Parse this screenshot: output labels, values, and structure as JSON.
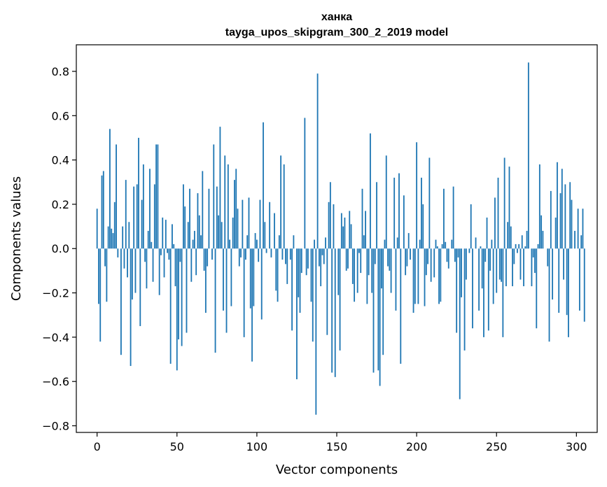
{
  "chart_data": {
    "type": "bar",
    "title": "ханка",
    "subtitle": "tayga_upos_skipgram_300_2_2019 model",
    "xlabel": "Vector components",
    "ylabel": "Components values",
    "xlim": [
      -13,
      313
    ],
    "ylim": [
      -0.83,
      0.92
    ],
    "xticks": [
      0,
      50,
      100,
      150,
      200,
      250,
      300
    ],
    "yticks": [
      -0.8,
      -0.6,
      -0.4,
      -0.2,
      0.0,
      0.2,
      0.4,
      0.6,
      0.8
    ],
    "ytick_labels": [
      "−0.8",
      "−0.6",
      "−0.4",
      "−0.2",
      "0.0",
      "0.2",
      "0.4",
      "0.6",
      "0.8"
    ],
    "bar_color": "#1f77b4",
    "grid": false,
    "values": [
      0.18,
      -0.25,
      -0.42,
      0.33,
      0.35,
      -0.08,
      -0.24,
      0.1,
      0.54,
      0.09,
      0.07,
      0.21,
      0.47,
      -0.04,
      0.0,
      -0.48,
      0.1,
      -0.09,
      0.31,
      -0.13,
      0.12,
      -0.53,
      -0.23,
      0.28,
      -0.2,
      0.29,
      0.5,
      -0.35,
      0.22,
      0.38,
      -0.06,
      -0.18,
      0.08,
      0.36,
      0.03,
      -0.15,
      0.29,
      0.47,
      0.47,
      -0.21,
      -0.03,
      0.14,
      -0.13,
      0.13,
      -0.02,
      -0.05,
      -0.52,
      0.11,
      0.02,
      -0.17,
      -0.55,
      -0.41,
      -0.06,
      -0.44,
      0.29,
      0.19,
      -0.38,
      0.12,
      0.27,
      -0.15,
      0.04,
      0.08,
      -0.12,
      0.25,
      0.15,
      0.06,
      0.35,
      -0.1,
      -0.29,
      -0.08,
      0.27,
      0.0,
      -0.05,
      0.47,
      -0.47,
      0.28,
      0.15,
      0.55,
      0.12,
      -0.28,
      0.42,
      -0.38,
      0.38,
      0.04,
      -0.26,
      0.14,
      0.31,
      0.36,
      0.18,
      -0.08,
      -0.04,
      0.22,
      -0.4,
      -0.05,
      0.06,
      0.23,
      -0.27,
      -0.51,
      -0.26,
      0.07,
      0.04,
      -0.06,
      0.22,
      -0.32,
      0.57,
      0.12,
      -0.02,
      0.0,
      0.21,
      -0.04,
      0.0,
      0.16,
      -0.19,
      -0.24,
      0.06,
      0.42,
      -0.05,
      0.38,
      -0.07,
      -0.16,
      0.0,
      -0.05,
      -0.37,
      0.06,
      0.0,
      -0.59,
      -0.22,
      -0.29,
      -0.11,
      0.0,
      0.59,
      -0.12,
      -0.09,
      0.0,
      -0.24,
      -0.42,
      0.04,
      -0.75,
      0.79,
      -0.08,
      -0.17,
      -0.03,
      -0.07,
      0.05,
      -0.39,
      0.21,
      0.3,
      -0.56,
      0.2,
      -0.58,
      0.0,
      -0.21,
      -0.46,
      0.16,
      0.1,
      0.14,
      -0.1,
      -0.09,
      0.17,
      0.11,
      -0.16,
      -0.24,
      0.0,
      -0.2,
      -0.02,
      -0.11,
      0.27,
      0.06,
      0.17,
      -0.25,
      -0.12,
      0.52,
      -0.2,
      -0.56,
      -0.07,
      0.3,
      -0.55,
      -0.62,
      -0.18,
      -0.48,
      0.04,
      0.42,
      -0.08,
      -0.1,
      -0.2,
      0.0,
      0.32,
      -0.28,
      0.05,
      0.34,
      -0.52,
      0.0,
      0.24,
      -0.12,
      -0.08,
      0.07,
      -0.05,
      0.0,
      -0.29,
      -0.25,
      0.48,
      -0.25,
      0.04,
      0.32,
      0.2,
      -0.26,
      -0.12,
      -0.07,
      0.41,
      -0.15,
      0.0,
      -0.13,
      0.04,
      0.01,
      -0.25,
      -0.24,
      0.02,
      0.27,
      0.03,
      -0.06,
      -0.09,
      0.0,
      0.04,
      0.28,
      -0.06,
      -0.38,
      -0.04,
      -0.68,
      -0.22,
      0.0,
      -0.46,
      -0.14,
      0.0,
      -0.02,
      0.2,
      -0.36,
      0.0,
      0.05,
      0.0,
      -0.28,
      0.01,
      -0.18,
      -0.4,
      -0.06,
      0.14,
      -0.37,
      -0.1,
      0.04,
      -0.25,
      0.23,
      -0.2,
      0.32,
      -0.14,
      -0.15,
      -0.4,
      0.41,
      -0.17,
      0.12,
      0.37,
      0.1,
      -0.17,
      -0.07,
      0.02,
      -0.02,
      0.02,
      -0.14,
      0.06,
      -0.17,
      0.01,
      0.08,
      0.84,
      0.0,
      -0.17,
      -0.04,
      -0.11,
      -0.36,
      0.02,
      0.38,
      0.15,
      0.08,
      0.0,
      0.0,
      -0.08,
      -0.42,
      0.26,
      -0.23,
      0.0,
      0.14,
      0.39,
      -0.29,
      0.25,
      0.36,
      -0.14,
      0.29,
      -0.3,
      -0.4,
      0.3,
      0.22,
      0.0,
      0.08,
      0.0,
      0.18,
      -0.28,
      0.06,
      0.18,
      -0.33
    ]
  }
}
